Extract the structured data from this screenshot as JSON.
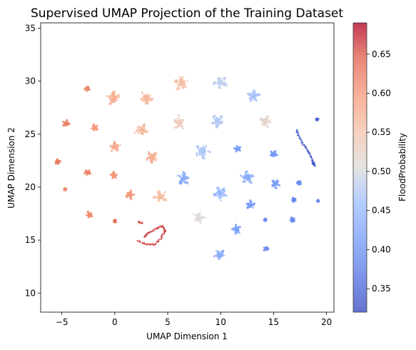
{
  "chart_data": {
    "type": "scatter",
    "title": "Supervised UMAP Projection of the Training Dataset",
    "xlabel": "UMAP Dimension 1",
    "ylabel": "UMAP Dimension 2",
    "xlim": [
      -7,
      20.7
    ],
    "ylim": [
      8.2,
      35.5
    ],
    "xticks": [
      -5,
      0,
      5,
      10,
      15,
      20
    ],
    "yticks": [
      10,
      15,
      20,
      25,
      30,
      35
    ],
    "grid": false,
    "colorbar": {
      "label": "FloodProbability",
      "min": 0.32,
      "max": 0.69,
      "ticks": [
        0.35,
        0.4,
        0.45,
        0.5,
        0.55,
        0.6,
        0.65
      ],
      "colormap": "coolwarm"
    },
    "clusters": [
      {
        "x": -2.6,
        "y": 29.3,
        "value": 0.615,
        "size": 0.25
      },
      {
        "x": -0.1,
        "y": 28.4,
        "value": 0.575,
        "size": 0.6
      },
      {
        "x": 3.0,
        "y": 28.4,
        "value": 0.565,
        "size": 0.6
      },
      {
        "x": 6.3,
        "y": 29.8,
        "value": 0.56,
        "size": 0.65
      },
      {
        "x": 10.0,
        "y": 29.9,
        "value": 0.485,
        "size": 0.6
      },
      {
        "x": 13.1,
        "y": 28.6,
        "value": 0.465,
        "size": 0.55
      },
      {
        "x": -4.6,
        "y": 26.0,
        "value": 0.62,
        "size": 0.3
      },
      {
        "x": -1.9,
        "y": 25.6,
        "value": 0.6,
        "size": 0.35
      },
      {
        "x": 2.5,
        "y": 25.4,
        "value": 0.565,
        "size": 0.6
      },
      {
        "x": 6.1,
        "y": 26.1,
        "value": 0.535,
        "size": 0.6
      },
      {
        "x": 9.7,
        "y": 26.2,
        "value": 0.475,
        "size": 0.6
      },
      {
        "x": 14.2,
        "y": 26.2,
        "value": 0.52,
        "size": 0.55
      },
      {
        "x": 0.0,
        "y": 23.8,
        "value": 0.58,
        "size": 0.45
      },
      {
        "x": 3.5,
        "y": 22.8,
        "value": 0.575,
        "size": 0.55
      },
      {
        "x": 8.3,
        "y": 23.4,
        "value": 0.47,
        "size": 0.65
      },
      {
        "x": 11.6,
        "y": 23.6,
        "value": 0.41,
        "size": 0.3
      },
      {
        "x": 15.0,
        "y": 23.1,
        "value": 0.405,
        "size": 0.3
      },
      {
        "x": -5.4,
        "y": 22.4,
        "value": 0.63,
        "size": 0.25
      },
      {
        "x": -2.6,
        "y": 21.4,
        "value": 0.62,
        "size": 0.3
      },
      {
        "x": -0.1,
        "y": 21.1,
        "value": 0.605,
        "size": 0.3
      },
      {
        "x": 6.5,
        "y": 20.8,
        "value": 0.43,
        "size": 0.55
      },
      {
        "x": 10.0,
        "y": 19.4,
        "value": 0.45,
        "size": 0.6
      },
      {
        "x": 12.5,
        "y": 20.9,
        "value": 0.43,
        "size": 0.55
      },
      {
        "x": 15.2,
        "y": 20.3,
        "value": 0.41,
        "size": 0.4
      },
      {
        "x": -4.7,
        "y": 19.8,
        "value": 0.615,
        "size": 0.15
      },
      {
        "x": 1.4,
        "y": 19.3,
        "value": 0.6,
        "size": 0.4
      },
      {
        "x": 4.3,
        "y": 19.1,
        "value": 0.56,
        "size": 0.55
      },
      {
        "x": 17.4,
        "y": 20.4,
        "value": 0.39,
        "size": 0.2
      },
      {
        "x": 16.9,
        "y": 18.8,
        "value": 0.385,
        "size": 0.2
      },
      {
        "x": 12.8,
        "y": 18.3,
        "value": 0.41,
        "size": 0.4
      },
      {
        "x": -2.4,
        "y": 17.4,
        "value": 0.615,
        "size": 0.3
      },
      {
        "x": 0.0,
        "y": 16.8,
        "value": 0.635,
        "size": 0.15
      },
      {
        "x": 7.9,
        "y": 17.1,
        "value": 0.51,
        "size": 0.55
      },
      {
        "x": 11.5,
        "y": 16.0,
        "value": 0.415,
        "size": 0.45
      },
      {
        "x": 14.2,
        "y": 16.9,
        "value": 0.39,
        "size": 0.15
      },
      {
        "x": 16.8,
        "y": 16.9,
        "value": 0.39,
        "size": 0.25
      },
      {
        "x": 19.2,
        "y": 18.7,
        "value": 0.38,
        "size": 0.1
      },
      {
        "x": 14.3,
        "y": 14.2,
        "value": 0.395,
        "size": 0.25
      },
      {
        "x": 9.9,
        "y": 13.6,
        "value": 0.435,
        "size": 0.45
      },
      {
        "x": 19.1,
        "y": 26.4,
        "value": 0.345,
        "size": 0.12
      },
      {
        "x": 18.8,
        "y": 22.2,
        "value": 0.33,
        "size": 0.12
      }
    ],
    "arcs": [
      {
        "value": 0.665,
        "points": [
          [
            2.2,
            14.9
          ],
          [
            3.0,
            14.6
          ],
          [
            3.8,
            14.6
          ],
          [
            4.4,
            15.2
          ],
          [
            4.8,
            15.9
          ],
          [
            4.5,
            16.3
          ],
          [
            3.9,
            16.1
          ],
          [
            3.2,
            15.7
          ],
          [
            2.8,
            15.3
          ]
        ]
      },
      {
        "value": 0.655,
        "points": [
          [
            2.2,
            16.7
          ],
          [
            2.6,
            16.6
          ]
        ]
      },
      {
        "value": 0.335,
        "points": [
          [
            17.2,
            25.4
          ],
          [
            17.4,
            24.8
          ],
          [
            17.8,
            24.0
          ],
          [
            18.2,
            23.5
          ],
          [
            18.5,
            23.0
          ],
          [
            18.7,
            22.4
          ],
          [
            18.9,
            22.0
          ]
        ]
      }
    ]
  }
}
